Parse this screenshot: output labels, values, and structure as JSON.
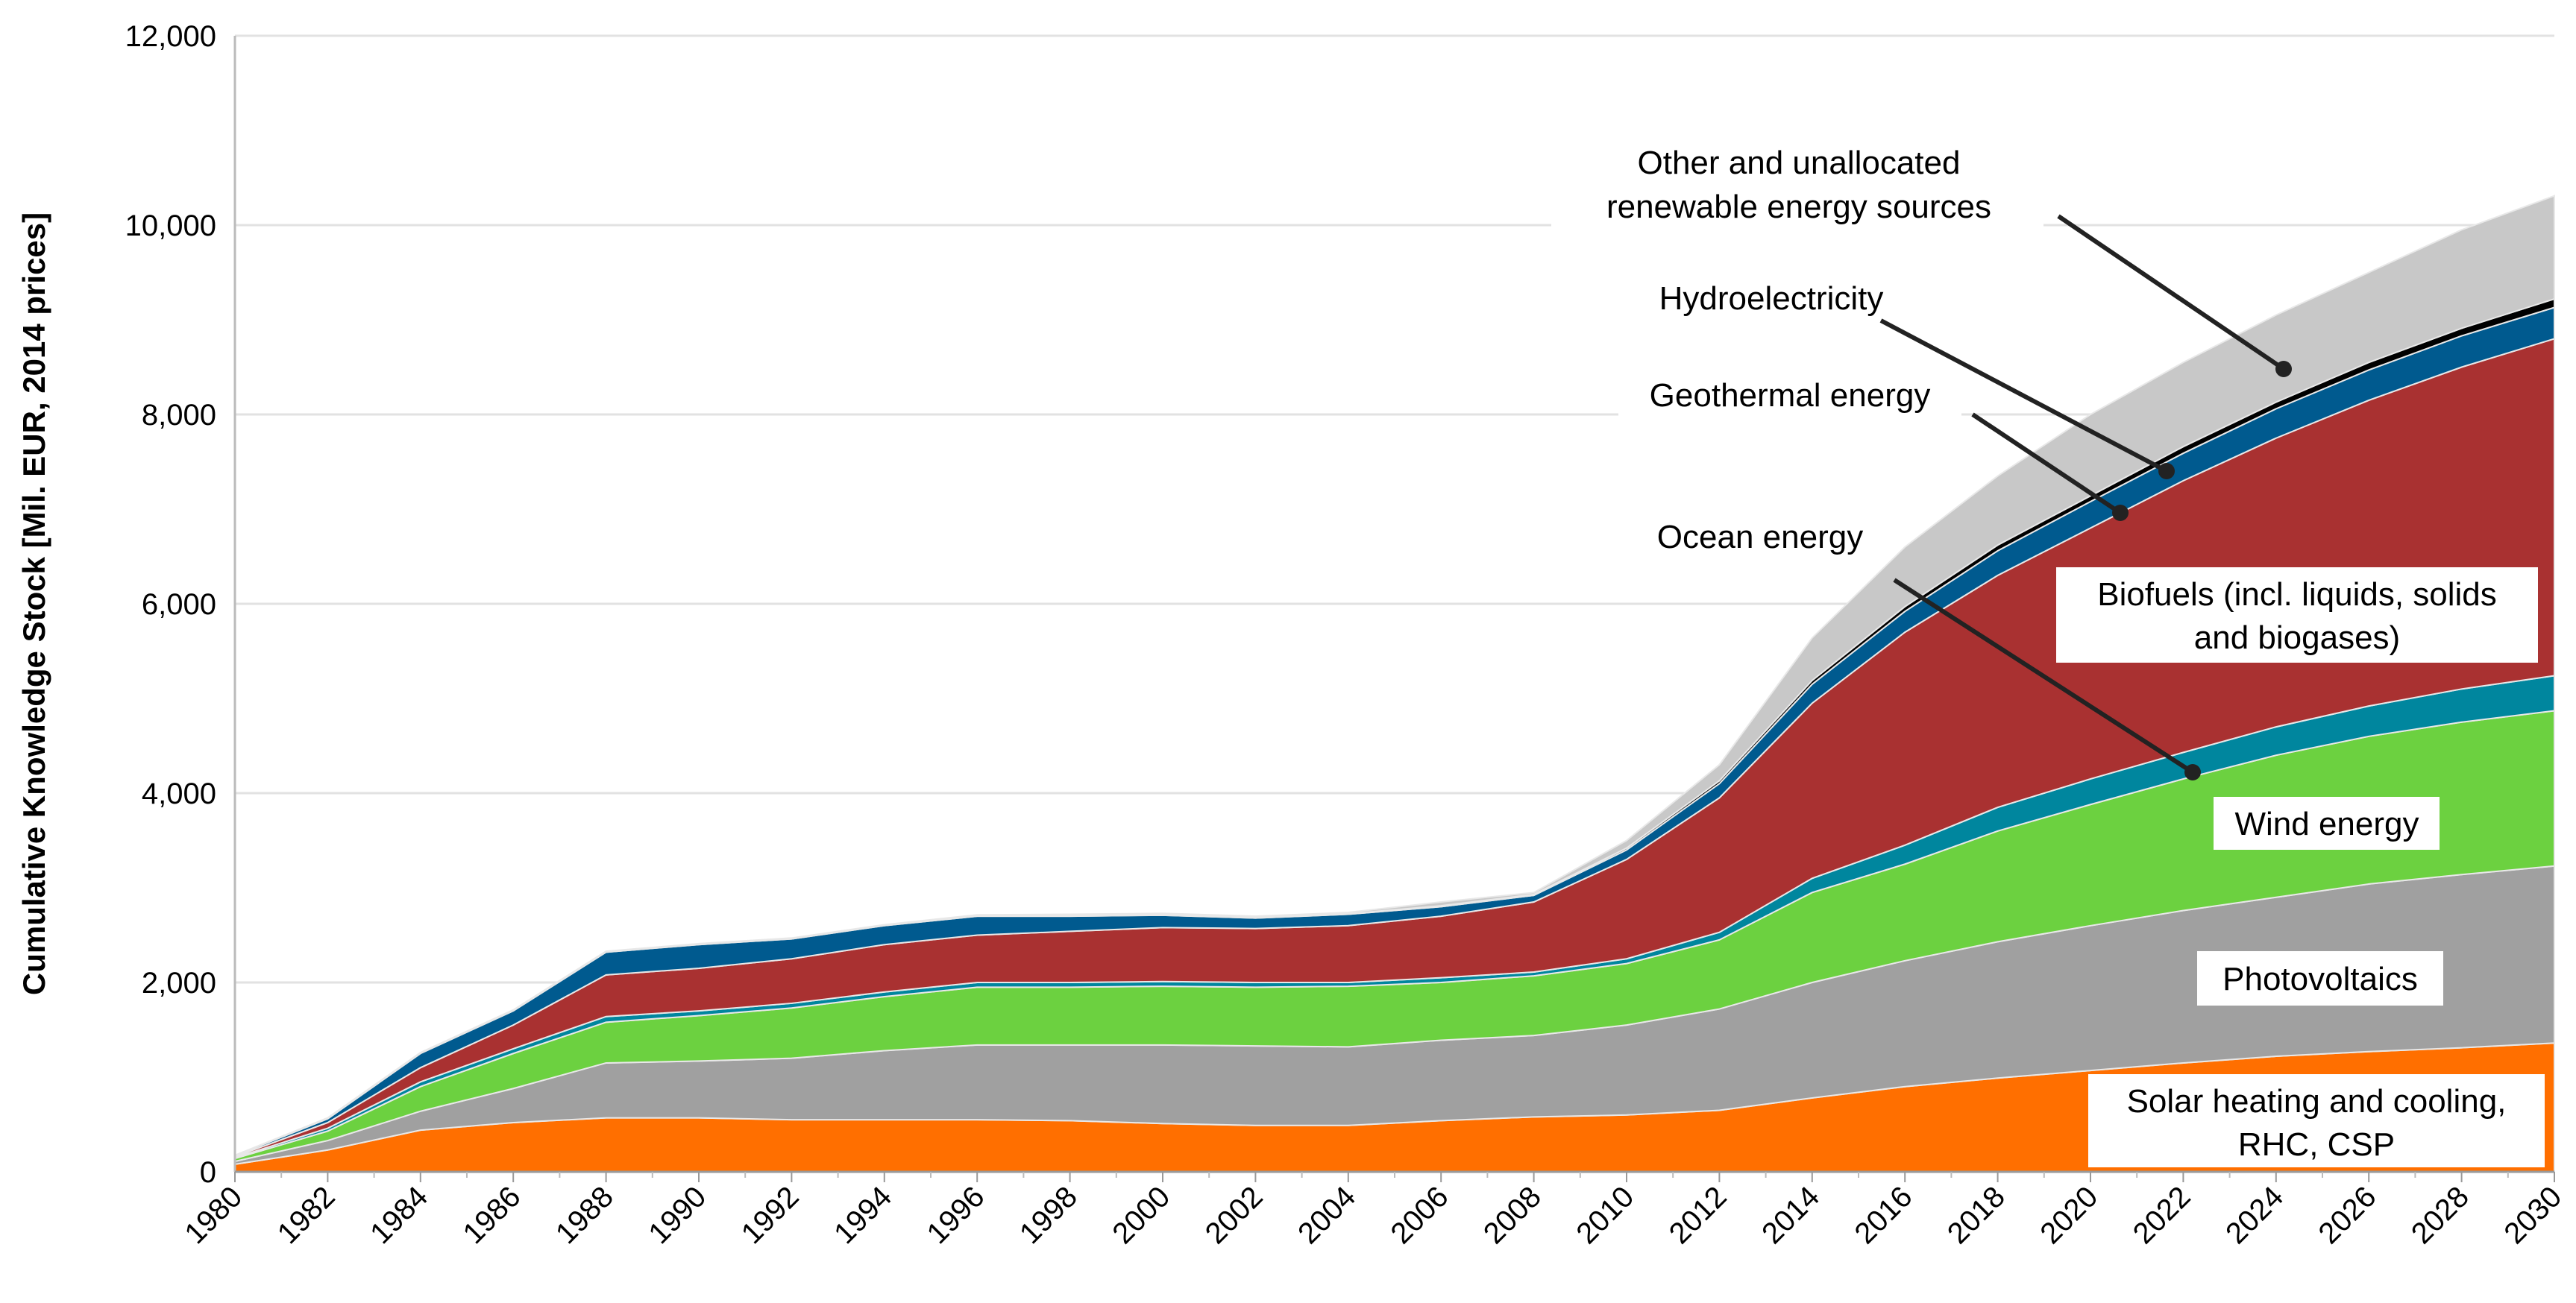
{
  "chart_data": {
    "type": "area",
    "stacked": true,
    "title": "",
    "xlabel": "",
    "ylabel": "Cumulative Knowledge Stock [Mil. EUR, 2014 prices]",
    "ylim": [
      0,
      12000
    ],
    "yticks": [
      0,
      2000,
      4000,
      6000,
      8000,
      10000,
      12000
    ],
    "ytick_labels": [
      "0",
      "2,000",
      "4,000",
      "6,000",
      "8,000",
      "10,000",
      "12,000"
    ],
    "grid": "horizontal",
    "x": [
      1980,
      1982,
      1984,
      1986,
      1988,
      1990,
      1992,
      1994,
      1996,
      1998,
      2000,
      2002,
      2004,
      2006,
      2008,
      2010,
      2012,
      2014,
      2016,
      2018,
      2020,
      2022,
      2024,
      2026,
      2028,
      2030
    ],
    "xtick_labels": [
      "1980",
      "1982",
      "1984",
      "1986",
      "1988",
      "1990",
      "1992",
      "1994",
      "1996",
      "1998",
      "2000",
      "2002",
      "2004",
      "2006",
      "2008",
      "2010",
      "2012",
      "2014",
      "2016",
      "2018",
      "2020",
      "2022",
      "2024",
      "2026",
      "2028",
      "2030"
    ],
    "series": [
      {
        "name": "Solar heating and cooling, RHC, CSP",
        "color": "#FF6F00",
        "values": [
          80,
          230,
          440,
          520,
          570,
          570,
          550,
          550,
          550,
          540,
          510,
          490,
          490,
          540,
          580,
          600,
          650,
          780,
          900,
          990,
          1070,
          1150,
          1220,
          1270,
          1310,
          1360
        ]
      },
      {
        "name": "Photovoltaics",
        "color": "#A0A0A0",
        "values": [
          30,
          100,
          200,
          360,
          580,
          600,
          650,
          730,
          790,
          800,
          830,
          840,
          830,
          850,
          860,
          950,
          1070,
          1220,
          1330,
          1440,
          1530,
          1610,
          1680,
          1770,
          1830,
          1870
        ]
      },
      {
        "name": "Wind energy",
        "color": "#6CD140",
        "values": [
          30,
          100,
          260,
          370,
          430,
          480,
          530,
          570,
          610,
          610,
          620,
          620,
          640,
          610,
          630,
          650,
          730,
          950,
          1020,
          1170,
          1280,
          1390,
          1500,
          1560,
          1610,
          1640
        ]
      },
      {
        "name": "Ocean energy",
        "color": "#00869E",
        "values": [
          10,
          30,
          50,
          50,
          60,
          50,
          50,
          50,
          50,
          50,
          50,
          50,
          40,
          50,
          40,
          50,
          80,
          150,
          200,
          250,
          270,
          280,
          300,
          320,
          350,
          370
        ]
      },
      {
        "name": "Biofuels (incl. liquids, solids and biogases)",
        "color": "#A93131",
        "values": [
          10,
          60,
          150,
          250,
          440,
          450,
          470,
          500,
          500,
          540,
          570,
          570,
          600,
          650,
          740,
          1050,
          1420,
          1850,
          2250,
          2450,
          2650,
          2870,
          3050,
          3230,
          3400,
          3560
        ]
      },
      {
        "name": "Geothermal energy",
        "color": "#005A8F",
        "values": [
          10,
          40,
          150,
          150,
          240,
          250,
          210,
          200,
          200,
          160,
          130,
          110,
          120,
          100,
          70,
          100,
          150,
          200,
          220,
          260,
          280,
          290,
          310,
          320,
          330,
          330
        ]
      },
      {
        "name": "Hydroelectricity",
        "color": "#000000",
        "values": [
          2,
          5,
          5,
          5,
          5,
          5,
          5,
          5,
          5,
          5,
          5,
          5,
          5,
          10,
          10,
          20,
          30,
          40,
          50,
          60,
          60,
          70,
          70,
          80,
          80,
          90
        ]
      },
      {
        "name": "Other and unallocated renewable energy sources",
        "color": "#C8C8C8",
        "values": [
          3,
          5,
          5,
          5,
          5,
          5,
          5,
          5,
          10,
          15,
          15,
          15,
          15,
          40,
          20,
          80,
          170,
          450,
          630,
          730,
          860,
          890,
          920,
          950,
          1040,
          1090
        ]
      }
    ],
    "annotations": {
      "other_line1": "Other and unallocated",
      "other_line2": "renewable energy sources",
      "hydro": "Hydroelectricity",
      "geothermal": "Geothermal energy",
      "ocean": "Ocean energy",
      "biofuels_line1": "Biofuels (incl. liquids, solids",
      "biofuels_line2": "and biogases)",
      "wind": "Wind energy",
      "pv": "Photovoltaics",
      "solar_line1": "Solar heating and cooling,",
      "solar_line2": "RHC, CSP"
    }
  }
}
